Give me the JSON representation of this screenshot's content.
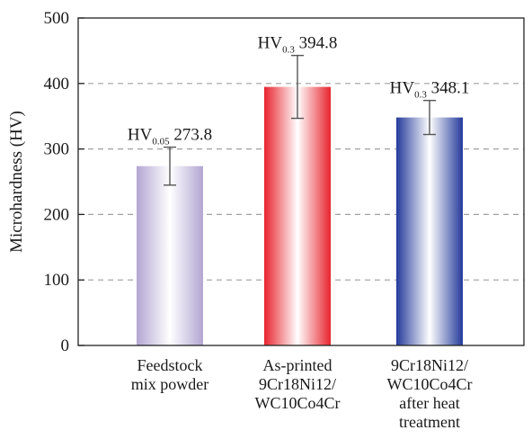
{
  "chart_data": {
    "type": "bar",
    "categories": [
      [
        "Feedstock",
        "mix powder"
      ],
      [
        "As-printed",
        "9Cr18Ni12/",
        "WC10Co4Cr"
      ],
      [
        "9Cr18Ni12/",
        "WC10Co4Cr",
        "after heat",
        "treatment"
      ]
    ],
    "values": [
      273.8,
      394.8,
      348.1
    ],
    "errors": [
      29,
      48,
      26
    ],
    "value_labels": [
      {
        "prefix": "HV",
        "sub": "0.05",
        "value": "273.8"
      },
      {
        "prefix": "HV",
        "sub": "0.3",
        "value": "394.8"
      },
      {
        "prefix": "HV",
        "sub": "0.3",
        "value": "348.1"
      }
    ],
    "bar_colors": [
      "#b3a6d2",
      "#e8242e",
      "#243a9a"
    ],
    "ylabel": "Microhardness (HV)",
    "ylim": [
      0,
      500
    ],
    "yticks": [
      0,
      100,
      200,
      300,
      400,
      500
    ],
    "grid": true
  }
}
